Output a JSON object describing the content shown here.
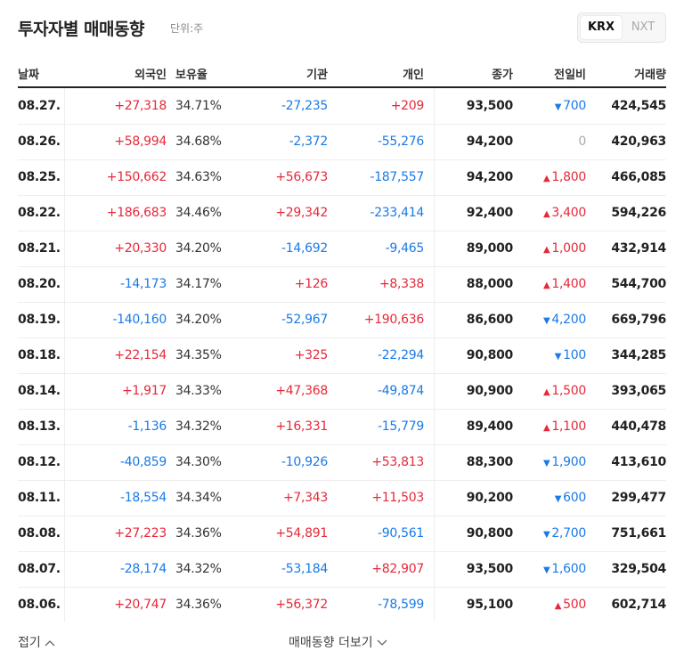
{
  "header": {
    "title": "투자자별 매매동향",
    "unit": "단위:주",
    "tabs": [
      "KRX",
      "NXT"
    ]
  },
  "table": {
    "columns": [
      "날짜",
      "외국인",
      "보유율",
      "기관",
      "개인",
      "종가",
      "전일비",
      "거래량"
    ],
    "rows": [
      [
        "08.27.",
        "+27,318",
        "34.71%",
        "-27,235",
        "+209",
        "93,500",
        "▼700",
        "424,545"
      ],
      [
        "08.26.",
        "+58,994",
        "34.68%",
        "-2,372",
        "-55,276",
        "94,200",
        "0",
        "420,963"
      ],
      [
        "08.25.",
        "+150,662",
        "34.63%",
        "+56,673",
        "-187,557",
        "94,200",
        "▲1,800",
        "466,085"
      ],
      [
        "08.22.",
        "+186,683",
        "34.46%",
        "+29,342",
        "-233,414",
        "92,400",
        "▲3,400",
        "594,226"
      ],
      [
        "08.21.",
        "+20,330",
        "34.20%",
        "-14,692",
        "-9,465",
        "89,000",
        "▲1,000",
        "432,914"
      ],
      [
        "08.20.",
        "-14,173",
        "34.17%",
        "+126",
        "+8,338",
        "88,000",
        "▲1,400",
        "544,700"
      ],
      [
        "08.19.",
        "-140,160",
        "34.20%",
        "-52,967",
        "+190,636",
        "86,600",
        "▼4,200",
        "669,796"
      ],
      [
        "08.18.",
        "+22,154",
        "34.35%",
        "+325",
        "-22,294",
        "90,800",
        "▼100",
        "344,285"
      ],
      [
        "08.14.",
        "+1,917",
        "34.33%",
        "+47,368",
        "-49,874",
        "90,900",
        "▲1,500",
        "393,065"
      ],
      [
        "08.13.",
        "-1,136",
        "34.32%",
        "+16,331",
        "-15,779",
        "89,400",
        "▲1,100",
        "440,478"
      ],
      [
        "08.12.",
        "-40,859",
        "34.30%",
        "-10,926",
        "+53,813",
        "88,300",
        "▼1,900",
        "413,610"
      ],
      [
        "08.11.",
        "-18,554",
        "34.34%",
        "+7,343",
        "+11,503",
        "90,200",
        "▼600",
        "299,477"
      ],
      [
        "08.08.",
        "+27,223",
        "34.36%",
        "+54,891",
        "-90,561",
        "90,800",
        "▼2,700",
        "751,661"
      ],
      [
        "08.07.",
        "-28,174",
        "34.32%",
        "-53,184",
        "+82,907",
        "93,500",
        "▼1,600",
        "329,504"
      ],
      [
        "08.06.",
        "+20,747",
        "34.36%",
        "+56,372",
        "-78,599",
        "95,100",
        "▲500",
        "602,714"
      ]
    ]
  },
  "footer": {
    "collapse": "접기",
    "more": "매매동향 더보기"
  }
}
